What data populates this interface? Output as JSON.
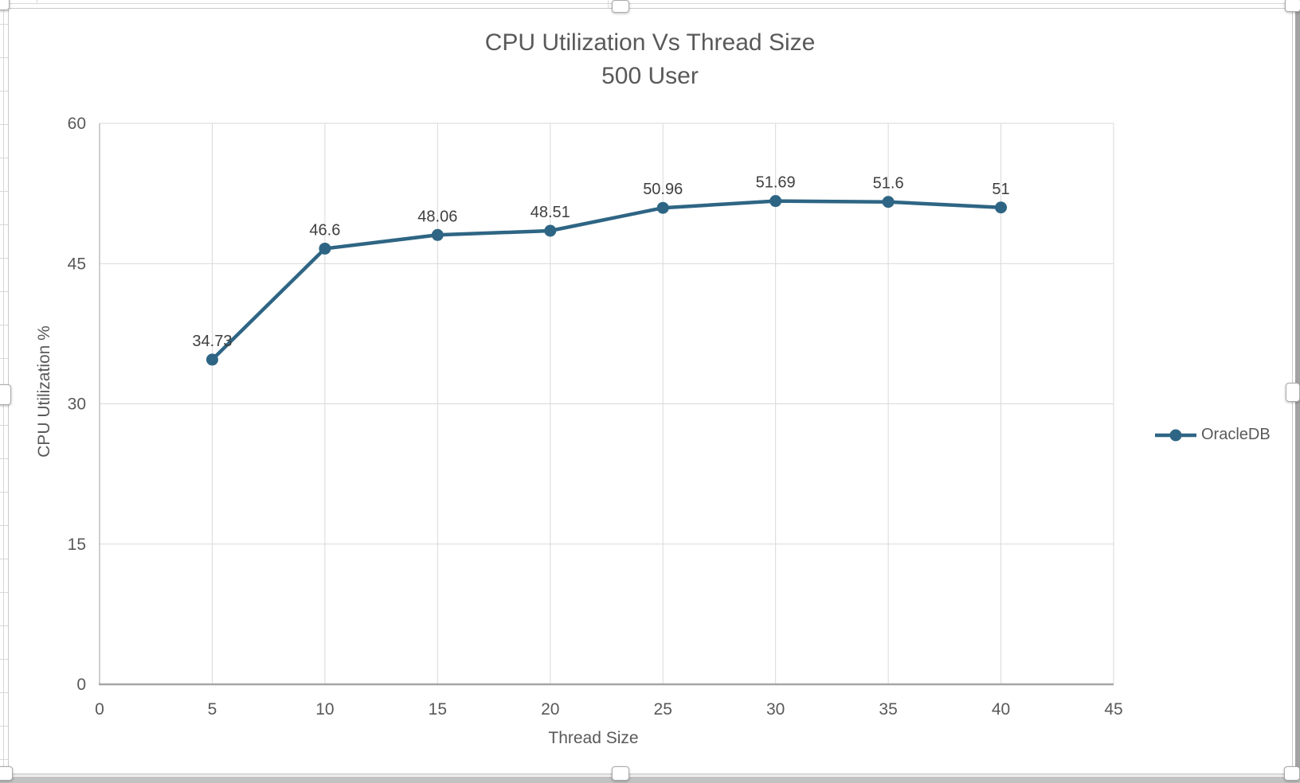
{
  "app_context": {
    "description_of_selection": "embedded chart object selected with resize handles"
  },
  "chart_data": {
    "type": "line",
    "title": "CPU Utilization Vs Thread Size",
    "subtitle": "500 User",
    "xlabel": "Thread Size",
    "ylabel": "CPU Utilization %",
    "xlim": [
      0,
      45
    ],
    "ylim": [
      0,
      60
    ],
    "x_ticks": [
      0,
      5,
      10,
      15,
      20,
      25,
      30,
      35,
      40,
      45
    ],
    "y_ticks": [
      0,
      15,
      30,
      45,
      60
    ],
    "grid": true,
    "legend_position": "right",
    "series": [
      {
        "name": "OracleDB",
        "x": [
          5,
          10,
          15,
          20,
          25,
          30,
          35,
          40
        ],
        "y": [
          34.73,
          46.6,
          48.06,
          48.51,
          50.96,
          51.69,
          51.6,
          51
        ],
        "data_labels": [
          "34.73",
          "46.6",
          "48.06",
          "48.51",
          "50.96",
          "51.69",
          "51.6",
          "51"
        ],
        "color": "#2E6584"
      }
    ],
    "colors": {
      "grid": "#D9D9D9",
      "y_axis_line": "#BFBFBF",
      "x_axis_line": "#A6A6A6",
      "tick_text": "#595959",
      "title_text": "#595959",
      "data_label_text": "#3F3F3F"
    }
  }
}
